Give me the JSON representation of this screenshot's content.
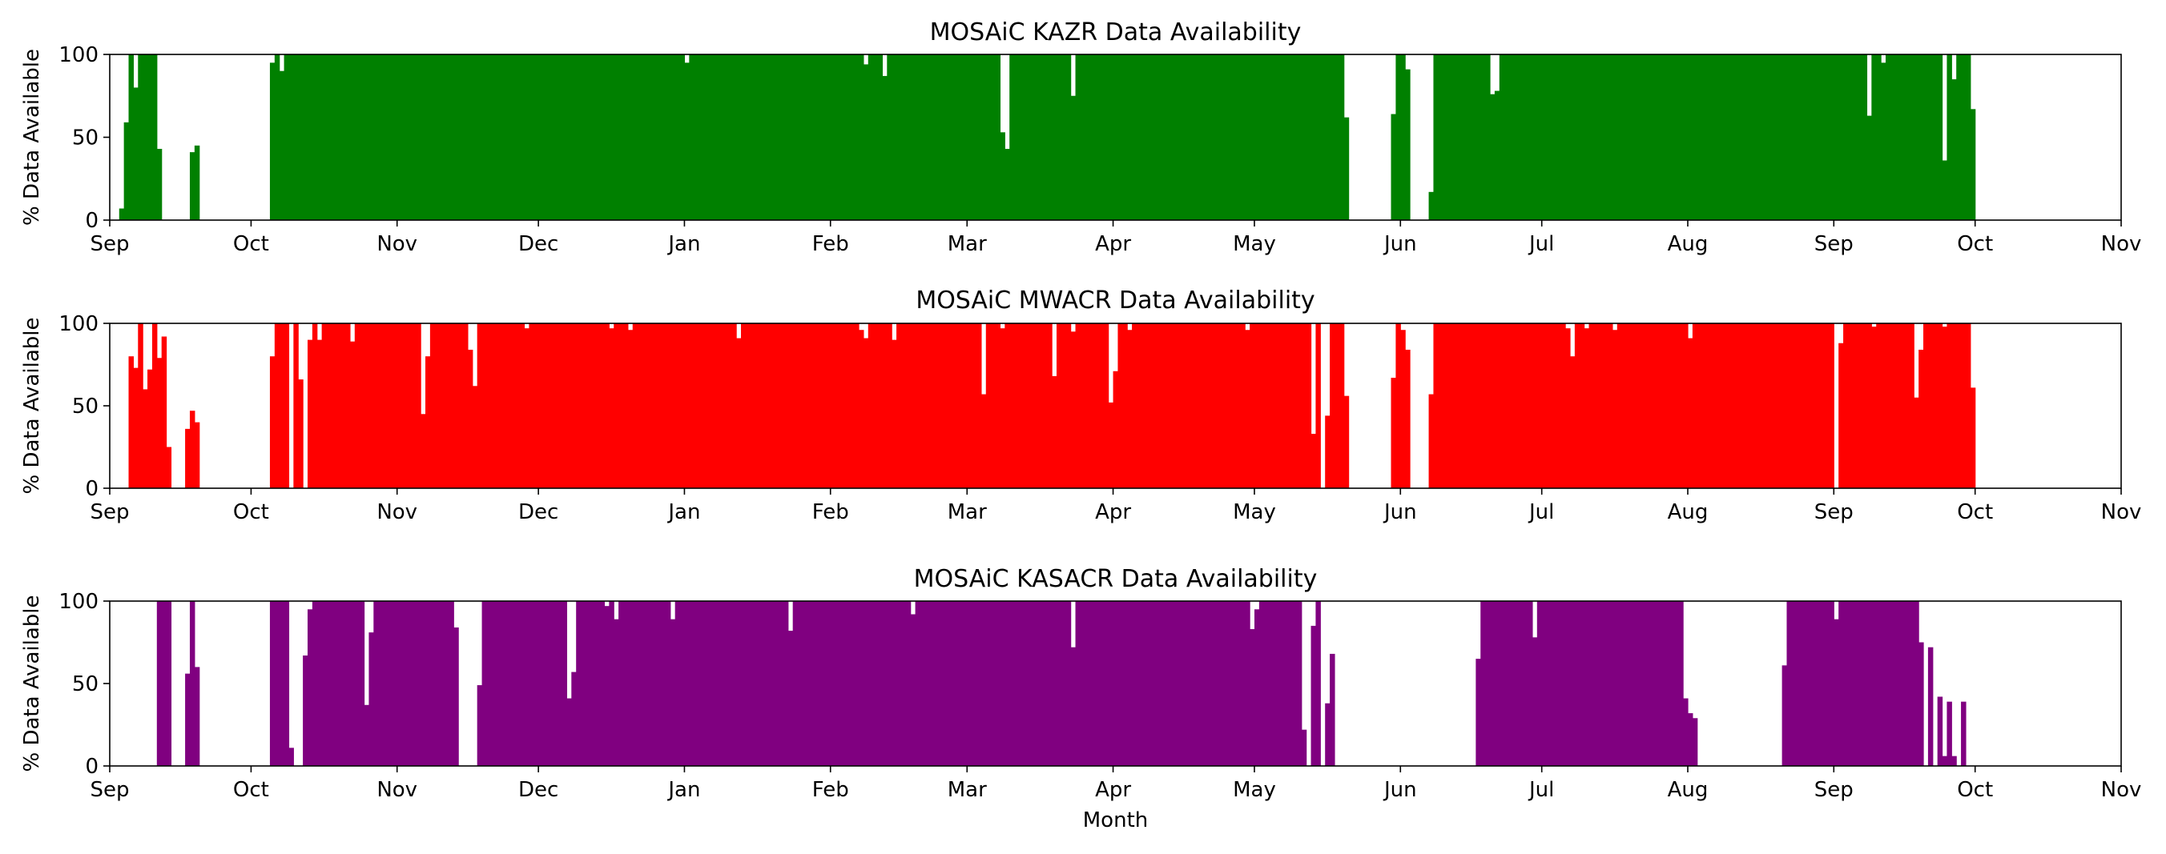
{
  "figure": {
    "xlabel": "Month"
  },
  "axes_common": {
    "ylabel": "% Data Available",
    "ylim": [
      0,
      100
    ],
    "yticks": [
      0,
      50,
      100
    ],
    "xlim": [
      "2019-09-01",
      "2020-11-01"
    ],
    "xticks": [
      {
        "date": "2019-09-01",
        "label": "Sep"
      },
      {
        "date": "2019-10-01",
        "label": "Oct"
      },
      {
        "date": "2019-11-01",
        "label": "Nov"
      },
      {
        "date": "2019-12-01",
        "label": "Dec"
      },
      {
        "date": "2020-01-01",
        "label": "Jan"
      },
      {
        "date": "2020-02-01",
        "label": "Feb"
      },
      {
        "date": "2020-03-01",
        "label": "Mar"
      },
      {
        "date": "2020-04-01",
        "label": "Apr"
      },
      {
        "date": "2020-05-01",
        "label": "May"
      },
      {
        "date": "2020-06-01",
        "label": "Jun"
      },
      {
        "date": "2020-07-01",
        "label": "Jul"
      },
      {
        "date": "2020-08-01",
        "label": "Aug"
      },
      {
        "date": "2020-09-01",
        "label": "Sep"
      },
      {
        "date": "2020-10-01",
        "label": "Oct"
      },
      {
        "date": "2020-11-01",
        "label": "Nov"
      }
    ],
    "grid": false,
    "legend": "none"
  },
  "chart_data": [
    {
      "type": "bar",
      "title": "MOSAiC KAZR Data Availability",
      "ylabel": "% Data Available",
      "color": "#008000",
      "series": [
        {
          "default_value": 100,
          "ranges": [
            {
              "start": "2019-09-03",
              "end": "2019-09-11"
            },
            {
              "start": "2019-09-18",
              "end": "2019-09-19"
            },
            {
              "start": "2019-10-05",
              "end": "2020-05-20"
            },
            {
              "start": "2020-05-30",
              "end": "2020-06-02"
            },
            {
              "start": "2020-06-07",
              "end": "2020-09-30"
            }
          ],
          "overrides": {
            "2019-09-03": 7,
            "2019-09-04": 59,
            "2019-09-06": 80,
            "2019-09-11": 43,
            "2019-09-18": 41,
            "2019-09-19": 45,
            "2019-10-05": 95,
            "2019-10-07": 90,
            "2020-01-01": 95,
            "2020-02-08": 94,
            "2020-02-12": 87,
            "2020-03-08": 53,
            "2020-03-09": 43,
            "2020-03-23": 75,
            "2020-05-20": 62,
            "2020-05-30": 64,
            "2020-06-02": 91,
            "2020-06-07": 17,
            "2020-06-20": 76,
            "2020-06-21": 78,
            "2020-09-08": 63,
            "2020-09-11": 95,
            "2020-09-24": 36,
            "2020-09-26": 85,
            "2020-09-30": 67
          }
        }
      ]
    },
    {
      "type": "bar",
      "title": "MOSAiC MWACR Data Availability",
      "ylabel": "% Data Available",
      "color": "#ff0000",
      "series": [
        {
          "default_value": 100,
          "ranges": [
            {
              "start": "2019-09-05",
              "end": "2019-09-13"
            },
            {
              "start": "2019-09-17",
              "end": "2019-09-19"
            },
            {
              "start": "2019-10-05",
              "end": "2020-05-14"
            },
            {
              "start": "2020-05-16",
              "end": "2020-05-20"
            },
            {
              "start": "2020-05-30",
              "end": "2020-06-02"
            },
            {
              "start": "2020-06-07",
              "end": "2020-09-30"
            }
          ],
          "skip": [
            "2019-10-09",
            "2019-10-12",
            "2020-09-01"
          ],
          "overrides": {
            "2019-09-05": 80,
            "2019-09-06": 73,
            "2019-09-07": 100,
            "2019-09-08": 60,
            "2019-09-09": 72,
            "2019-09-10": 100,
            "2019-09-11": 79,
            "2019-09-12": 92,
            "2019-09-13": 25,
            "2019-09-17": 36,
            "2019-09-18": 47,
            "2019-09-19": 40,
            "2019-10-05": 80,
            "2019-10-11": 66,
            "2019-10-13": 90,
            "2019-10-15": 90,
            "2019-10-22": 89,
            "2019-11-06": 45,
            "2019-11-07": 80,
            "2019-11-16": 84,
            "2019-11-17": 62,
            "2019-11-28": 97,
            "2019-12-16": 97,
            "2019-12-20": 96,
            "2020-01-12": 91,
            "2020-02-07": 96,
            "2020-02-08": 91,
            "2020-02-14": 90,
            "2020-03-04": 57,
            "2020-03-08": 97,
            "2020-03-19": 68,
            "2020-03-23": 95,
            "2020-03-31": 52,
            "2020-04-01": 71,
            "2020-04-04": 96,
            "2020-04-29": 96,
            "2020-05-13": 33,
            "2020-05-16": 44,
            "2020-05-20": 56,
            "2020-05-30": 67,
            "2020-06-01": 96,
            "2020-06-02": 84,
            "2020-06-07": 57,
            "2020-07-06": 97,
            "2020-07-07": 80,
            "2020-07-10": 97,
            "2020-07-16": 96,
            "2020-08-01": 91,
            "2020-09-02": 88,
            "2020-09-09": 98,
            "2020-09-18": 55,
            "2020-09-19": 84,
            "2020-09-24": 98,
            "2020-09-30": 61
          }
        }
      ]
    },
    {
      "type": "bar",
      "title": "MOSAiC KASACR Data Availability",
      "ylabel": "% Data Available",
      "color": "#800080",
      "series": [
        {
          "default_value": 100,
          "ranges": [
            {
              "start": "2019-09-11",
              "end": "2019-09-13"
            },
            {
              "start": "2019-09-17",
              "end": "2019-09-19"
            },
            {
              "start": "2019-10-05",
              "end": "2019-11-13"
            },
            {
              "start": "2019-11-18",
              "end": "2020-05-11"
            },
            {
              "start": "2020-05-13",
              "end": "2020-05-17"
            },
            {
              "start": "2020-06-17",
              "end": "2020-08-02"
            },
            {
              "start": "2020-08-21",
              "end": "2020-09-19"
            },
            {
              "start": "2020-09-21",
              "end": "2020-09-26"
            },
            {
              "start": "2020-09-28",
              "end": "2020-09-28"
            }
          ],
          "skip": [
            "2019-10-10",
            "2019-10-11",
            "2020-05-15",
            "2020-09-22"
          ],
          "overrides": {
            "2019-09-17": 56,
            "2019-09-18": 100,
            "2019-09-19": 60,
            "2019-10-09": 11,
            "2019-10-12": 67,
            "2019-10-13": 95,
            "2019-10-25": 37,
            "2019-10-26": 81,
            "2019-11-13": 84,
            "2019-11-18": 49,
            "2019-12-07": 41,
            "2019-12-08": 57,
            "2019-12-15": 97,
            "2019-12-17": 89,
            "2019-12-29": 89,
            "2020-01-23": 82,
            "2020-02-18": 92,
            "2020-03-23": 72,
            "2020-04-30": 83,
            "2020-05-01": 95,
            "2020-05-11": 22,
            "2020-05-12": 52,
            "2020-05-13": 85,
            "2020-05-16": 38,
            "2020-05-17": 68,
            "2020-06-17": 65,
            "2020-06-29": 78,
            "2020-07-31": 41,
            "2020-08-01": 32,
            "2020-08-02": 29,
            "2020-08-21": 61,
            "2020-09-01": 89,
            "2020-09-19": 75,
            "2020-09-21": 72,
            "2020-09-22": 42,
            "2020-09-23": 42,
            "2020-09-24": 6,
            "2020-09-25": 39,
            "2020-09-26": 6,
            "2020-09-28": 39
          }
        }
      ]
    }
  ]
}
